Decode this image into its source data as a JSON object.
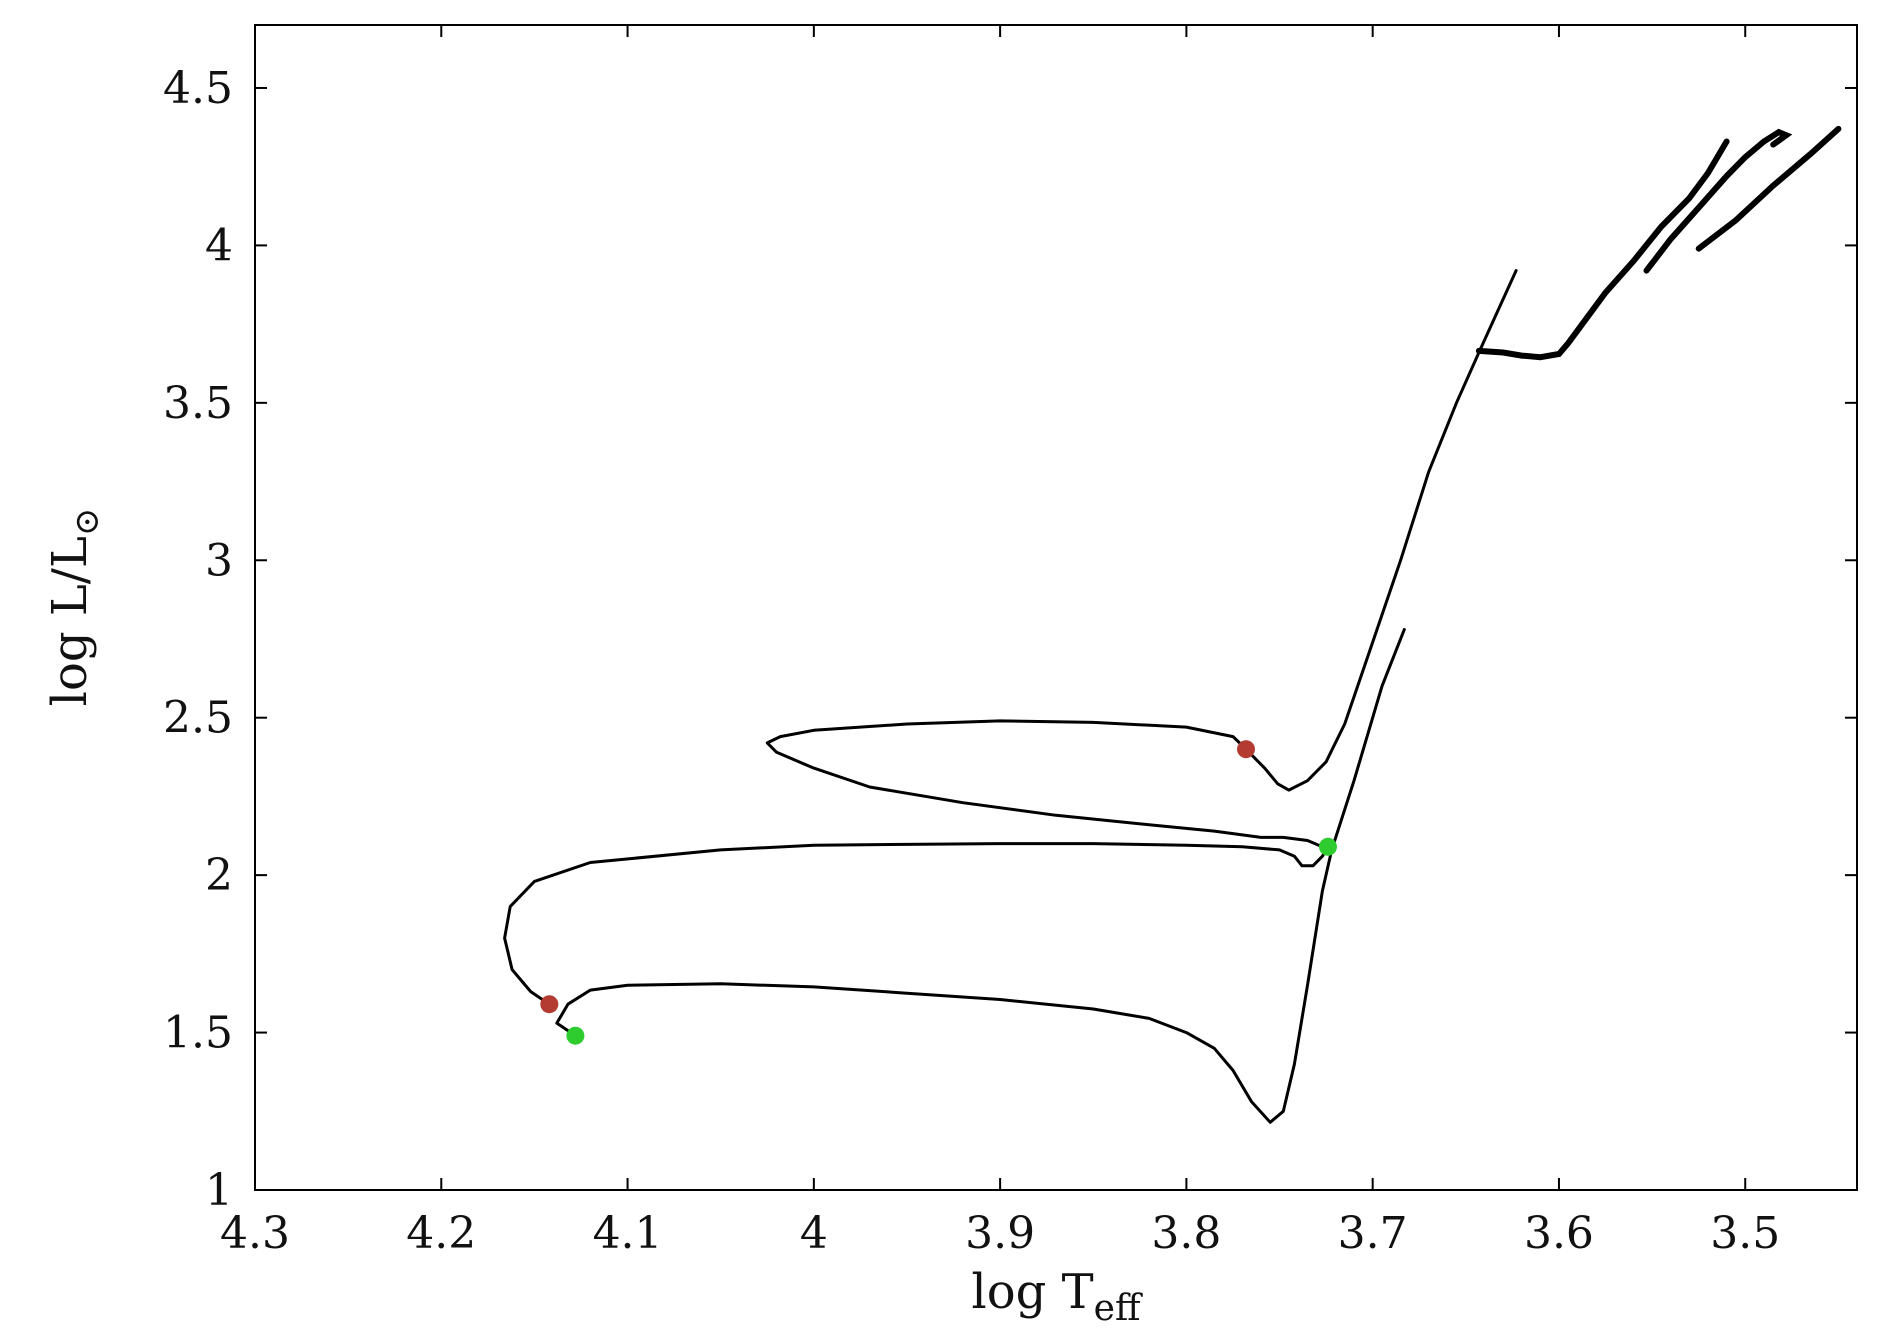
{
  "chart_data": {
    "type": "line",
    "xlabel": "log T",
    "xlabel_sub": "eff",
    "ylabel": "log L/L",
    "ylabel_sub": "⊙",
    "xlim": [
      4.3,
      3.44
    ],
    "ylim": [
      1.0,
      4.7
    ],
    "x_inverted": true,
    "xticks": [
      4.3,
      4.2,
      4.1,
      4.0,
      3.9,
      3.8,
      3.7,
      3.6,
      3.5
    ],
    "xtick_labels": [
      "4.3",
      "4.2",
      "4.1",
      "4",
      "3.9",
      "3.8",
      "3.7",
      "3.6",
      "3.5"
    ],
    "yticks": [
      1.0,
      1.5,
      2.0,
      2.5,
      3.0,
      3.5,
      4.0,
      4.5
    ],
    "ytick_labels": [
      "1",
      "1.5",
      "2",
      "2.5",
      "3",
      "3.5",
      "4",
      "4.5"
    ],
    "grid": false,
    "series": [
      {
        "color": "#000000",
        "points": [
          [
            4.128,
            1.49
          ],
          [
            4.133,
            1.51
          ],
          [
            4.138,
            1.53
          ],
          [
            4.135,
            1.56
          ],
          [
            4.132,
            1.59
          ],
          [
            4.12,
            1.635
          ],
          [
            4.1,
            1.65
          ],
          [
            4.05,
            1.655
          ],
          [
            4.0,
            1.645
          ],
          [
            3.95,
            1.625
          ],
          [
            3.9,
            1.605
          ],
          [
            3.85,
            1.575
          ],
          [
            3.82,
            1.545
          ],
          [
            3.8,
            1.5
          ],
          [
            3.785,
            1.45
          ],
          [
            3.775,
            1.38
          ],
          [
            3.765,
            1.28
          ],
          [
            3.755,
            1.215
          ],
          [
            3.748,
            1.25
          ],
          [
            3.742,
            1.4
          ],
          [
            3.735,
            1.65
          ],
          [
            3.727,
            1.95
          ],
          [
            3.722,
            2.08
          ],
          [
            3.71,
            2.3
          ],
          [
            3.695,
            2.6
          ],
          [
            3.683,
            2.78
          ]
        ]
      },
      {
        "color": "#000000",
        "points": [
          [
            4.142,
            1.59
          ],
          [
            4.152,
            1.63
          ],
          [
            4.162,
            1.7
          ],
          [
            4.166,
            1.8
          ],
          [
            4.163,
            1.9
          ],
          [
            4.15,
            1.98
          ],
          [
            4.12,
            2.04
          ],
          [
            4.05,
            2.08
          ],
          [
            4.0,
            2.095
          ],
          [
            3.9,
            2.1
          ],
          [
            3.85,
            2.1
          ],
          [
            3.8,
            2.095
          ],
          [
            3.77,
            2.09
          ],
          [
            3.75,
            2.08
          ],
          [
            3.742,
            2.06
          ],
          [
            3.738,
            2.03
          ],
          [
            3.732,
            2.03
          ],
          [
            3.727,
            2.06
          ],
          [
            3.724,
            2.09
          ]
        ]
      },
      {
        "color": "#000000",
        "points": [
          [
            3.727,
            2.09
          ],
          [
            3.735,
            2.11
          ],
          [
            3.748,
            2.12
          ],
          [
            3.76,
            2.12
          ],
          [
            3.785,
            2.14
          ],
          [
            3.82,
            2.16
          ],
          [
            3.87,
            2.19
          ],
          [
            3.92,
            2.23
          ],
          [
            3.97,
            2.28
          ],
          [
            4.0,
            2.34
          ],
          [
            4.02,
            2.39
          ],
          [
            4.025,
            2.42
          ],
          [
            4.018,
            2.44
          ],
          [
            4.0,
            2.46
          ],
          [
            3.95,
            2.48
          ],
          [
            3.9,
            2.49
          ],
          [
            3.85,
            2.485
          ],
          [
            3.8,
            2.47
          ],
          [
            3.775,
            2.44
          ],
          [
            3.768,
            2.4
          ],
          [
            3.758,
            2.34
          ],
          [
            3.751,
            2.29
          ],
          [
            3.745,
            2.27
          ],
          [
            3.735,
            2.3
          ],
          [
            3.725,
            2.36
          ],
          [
            3.715,
            2.48
          ],
          [
            3.7,
            2.74
          ],
          [
            3.685,
            3.0
          ],
          [
            3.67,
            3.28
          ],
          [
            3.655,
            3.5
          ],
          [
            3.643,
            3.66
          ],
          [
            3.633,
            3.79
          ],
          [
            3.623,
            3.92
          ]
        ]
      },
      {
        "color": "#000000",
        "points": [
          [
            3.643,
            3.665
          ],
          [
            3.63,
            3.66
          ],
          [
            3.62,
            3.65
          ],
          [
            3.61,
            3.645
          ],
          [
            3.6,
            3.655
          ],
          [
            3.595,
            3.69
          ],
          [
            3.585,
            3.77
          ],
          [
            3.575,
            3.85
          ],
          [
            3.56,
            3.95
          ],
          [
            3.545,
            4.06
          ],
          [
            3.53,
            4.15
          ],
          [
            3.52,
            4.23
          ],
          [
            3.51,
            4.33
          ]
        ]
      },
      {
        "color": "#000000",
        "points": [
          [
            3.553,
            3.92
          ],
          [
            3.54,
            4.02
          ],
          [
            3.525,
            4.12
          ],
          [
            3.51,
            4.22
          ],
          [
            3.5,
            4.28
          ],
          [
            3.49,
            4.33
          ],
          [
            3.482,
            4.36
          ],
          [
            3.478,
            4.35
          ],
          [
            3.485,
            4.32
          ]
        ]
      },
      {
        "color": "#000000",
        "points": [
          [
            3.525,
            3.99
          ],
          [
            3.505,
            4.08
          ],
          [
            3.485,
            4.19
          ],
          [
            3.465,
            4.29
          ],
          [
            3.45,
            4.37
          ]
        ]
      }
    ],
    "markers": [
      {
        "x": 4.128,
        "y": 1.49,
        "color": "#2ecc2e"
      },
      {
        "x": 4.142,
        "y": 1.59,
        "color": "#b33b32"
      },
      {
        "x": 3.724,
        "y": 2.09,
        "color": "#2ecc2e"
      },
      {
        "x": 3.768,
        "y": 2.4,
        "color": "#b33b32"
      }
    ]
  }
}
